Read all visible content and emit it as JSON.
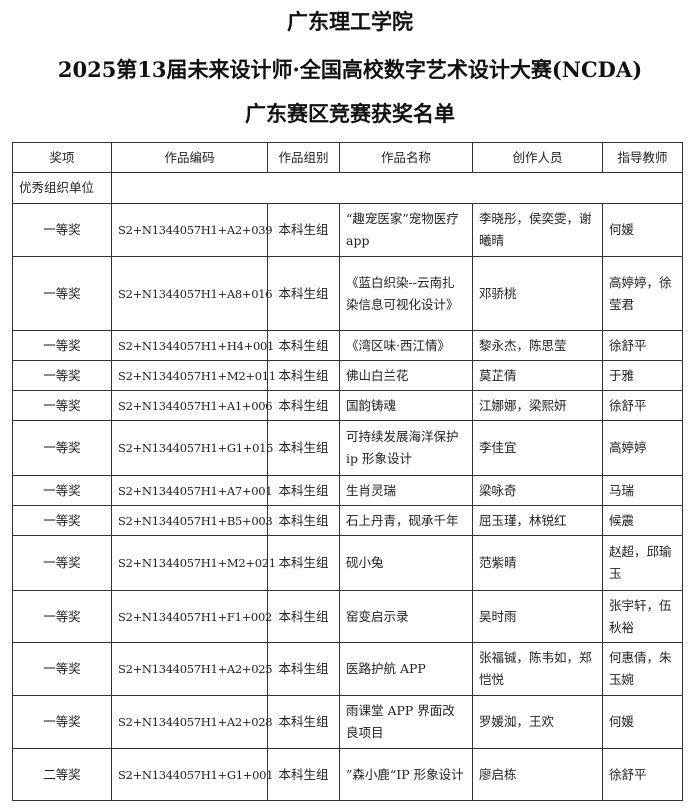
{
  "header": {
    "institution": "广东理工学院",
    "competition": "2025第13届未来设计师·全国高校数字艺术设计大赛(NCDA)",
    "subtitle": "广东赛区竞赛获奖名单"
  },
  "table": {
    "columns": [
      "奖项",
      "作品编码",
      "作品组别",
      "作品名称",
      "创作人员",
      "指导教师"
    ],
    "section_label": "优秀组织单位",
    "rows": [
      {
        "award": "一等奖",
        "code": "S2+N1344057H1+A2+039",
        "group": "本科生组",
        "title": "“趣宠医家”宠物医疗 app",
        "creators": "李晓彤，侯奕雯，谢曦晴",
        "advisors": "何媛"
      },
      {
        "award": "一等奖",
        "code": "S2+N1344057H1+A8+016",
        "group": "本科生组",
        "title": "《蓝白织染--云南扎染信息可视化设计》",
        "creators": "邓骄桃",
        "advisors": "高婷婷，徐莹君"
      },
      {
        "award": "一等奖",
        "code": "S2+N1344057H1+H4+001",
        "group": "本科生组",
        "title": "《湾区味·西江情》",
        "creators": "黎永杰，陈思莹",
        "advisors": "徐舒平"
      },
      {
        "award": "一等奖",
        "code": "S2+N1344057H1+M2+011",
        "group": "本科生组",
        "title": "佛山白兰花",
        "creators": "莫芷倩",
        "advisors": "于雅"
      },
      {
        "award": "一等奖",
        "code": "S2+N1344057H1+A1+006",
        "group": "本科生组",
        "title": "国韵铸魂",
        "creators": "江娜娜，梁熙妍",
        "advisors": "徐舒平"
      },
      {
        "award": "一等奖",
        "code": "S2+N1344057H1+G1+015",
        "group": "本科生组",
        "title": "可持续发展海洋保护 ip 形象设计",
        "creators": "李佳宜",
        "advisors": "高婷婷"
      },
      {
        "award": "一等奖",
        "code": "S2+N1344057H1+A7+001",
        "group": "本科生组",
        "title": "生肖灵瑞",
        "creators": "梁咏奇",
        "advisors": "马瑞"
      },
      {
        "award": "一等奖",
        "code": "S2+N1344057H1+B5+003",
        "group": "本科生组",
        "title": "石上丹青，砚承千年",
        "creators": "屈玉瑾，林锐红",
        "advisors": "候震"
      },
      {
        "award": "一等奖",
        "code": "S2+N1344057H1+M2+021",
        "group": "本科生组",
        "title": "砚小兔",
        "creators": "范紫晴",
        "advisors": "赵超，邱瑜玉"
      },
      {
        "award": "一等奖",
        "code": "S2+N1344057H1+F1+002",
        "group": "本科生组",
        "title": "窑变启示录",
        "creators": "吴时雨",
        "advisors": "张宇轩，伍秋裕"
      },
      {
        "award": "一等奖",
        "code": "S2+N1344057H1+A2+025",
        "group": "本科生组",
        "title": "医路护航 APP",
        "creators": "张福铖，陈韦如，郑恺悦",
        "advisors": "何惠倩，朱玉婉"
      },
      {
        "award": "一等奖",
        "code": "S2+N1344057H1+A2+028",
        "group": "本科生组",
        "title": "雨课堂 APP 界面改良项目",
        "creators": "罗媛洳，王欢",
        "advisors": "何媛"
      },
      {
        "award": "二等奖",
        "code": "S2+N1344057H1+G1+001",
        "group": "本科生组",
        "title": "”森小鹿“IP 形象设计",
        "creators": "廖启栋",
        "advisors": "徐舒平"
      }
    ]
  }
}
